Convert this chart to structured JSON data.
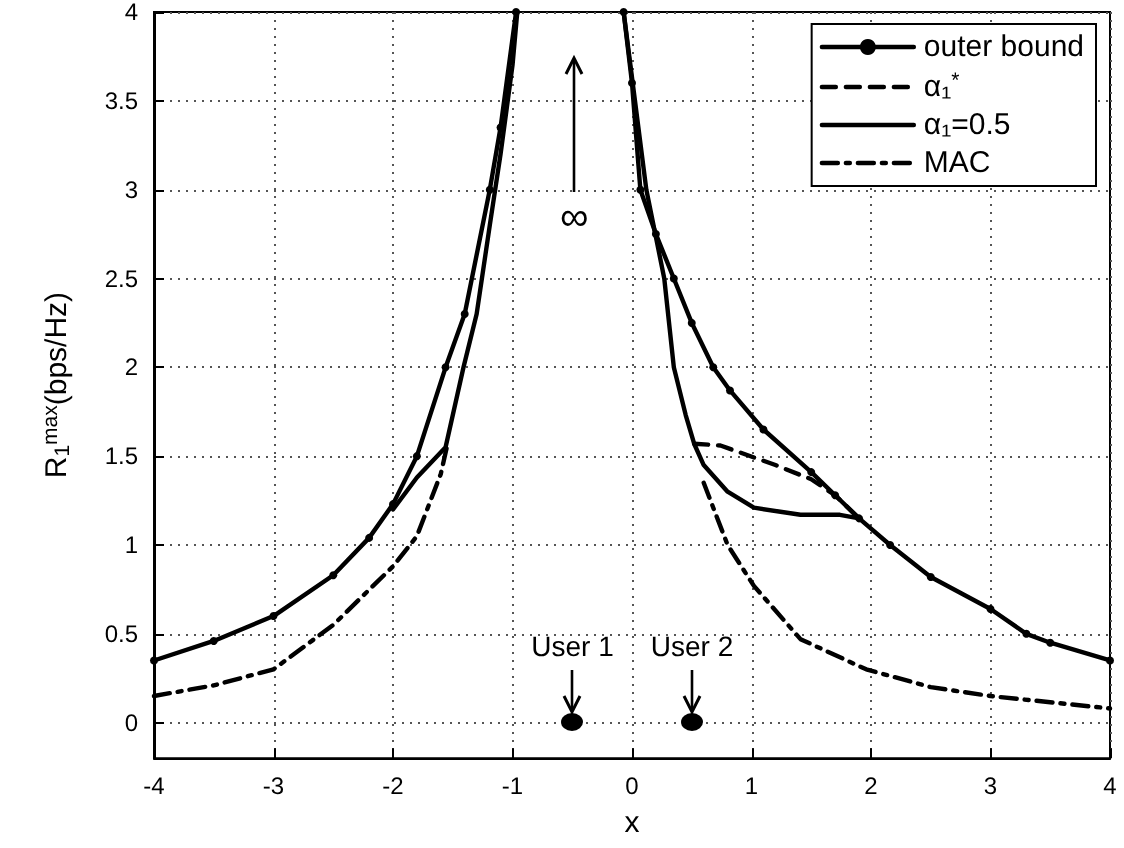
{
  "chart_data": {
    "type": "line",
    "xlabel": "x",
    "ylabel": "R$_{1}$$^{max}$(bps/Hz)",
    "xlim": [
      -4,
      4
    ],
    "xticks": [
      -4,
      -3,
      -2,
      -1,
      0,
      1,
      2,
      3,
      4
    ],
    "ylim": [
      -0.2,
      4
    ],
    "yticks": [
      0,
      0.5,
      1,
      1.5,
      2,
      2.5,
      3,
      3.5,
      4
    ],
    "grid": true,
    "legend": "top right",
    "marker": "none",
    "annotations": [
      "∞",
      {
        "text": "User 1",
        "x": -0.5,
        "y": 0
      },
      {
        "text": "User 2",
        "x": 0.5,
        "y": 0
      }
    ],
    "series": [
      {
        "name": "outer bound",
        "color": "#000000",
        "marker": "circle",
        "line_style": "solid",
        "x": [
          -4,
          -3.5,
          -3,
          -2.5,
          -2.2,
          -2,
          -1.8,
          -1.56,
          -1.4,
          -1.19,
          -1.1,
          -0.97,
          -0.5,
          -0.07,
          0,
          0.07,
          0.2,
          0.35,
          0.5,
          0.68,
          0.82,
          1.1,
          1.5,
          1.7,
          1.9,
          2.16,
          2.5,
          3,
          3.3,
          3.5,
          4
        ],
        "values": [
          0.35,
          0.46,
          0.6,
          0.83,
          1.04,
          1.23,
          1.5,
          2.0,
          2.3,
          3.0,
          3.35,
          4.0,
          null,
          4.0,
          3.6,
          3.0,
          2.75,
          2.5,
          2.25,
          2.0,
          1.87,
          1.65,
          1.41,
          1.28,
          1.15,
          1.0,
          0.82,
          0.64,
          0.5,
          0.45,
          0.35
        ]
      },
      {
        "name": "α₁$^{*}$",
        "color": "#000000",
        "line_style": "dashed",
        "x": [
          0.52,
          0.74,
          1.2,
          1.5,
          1.7,
          1.9
        ],
        "values": [
          1.57,
          1.56,
          1.45,
          1.37,
          1.28,
          1.15
        ]
      },
      {
        "name": "α₁=0.5",
        "color": "#000000",
        "line_style": "solid",
        "x": [
          -2,
          -1.8,
          -1.56,
          -1.41,
          -1.3,
          -1.19,
          -1.1,
          -1.0,
          -0.96,
          -0.5,
          -0.07,
          0.12,
          0.27,
          0.35,
          0.45,
          0.52,
          0.6,
          0.8,
          1.02,
          1.41,
          1.74,
          1.9
        ],
        "values": [
          1.2,
          1.38,
          1.55,
          2.0,
          2.3,
          2.8,
          3.2,
          3.7,
          4.0,
          null,
          4.0,
          3.0,
          2.5,
          2.0,
          1.73,
          1.57,
          1.45,
          1.3,
          1.21,
          1.17,
          1.17,
          1.15
        ]
      },
      {
        "name": "MAC",
        "color": "#000000",
        "line_style": "dashdot",
        "x": [
          -4,
          -3.5,
          -3,
          -2.5,
          -2,
          -1.8,
          -1.6,
          -1.55,
          -0.5,
          0.6,
          0.8,
          1.02,
          1.41,
          1.96,
          2.5,
          3,
          4
        ],
        "values": [
          0.15,
          0.21,
          0.3,
          0.55,
          0.88,
          1.05,
          1.4,
          1.55,
          null,
          1.35,
          1.0,
          0.77,
          0.47,
          0.3,
          0.2,
          0.15,
          0.08
        ]
      }
    ]
  }
}
